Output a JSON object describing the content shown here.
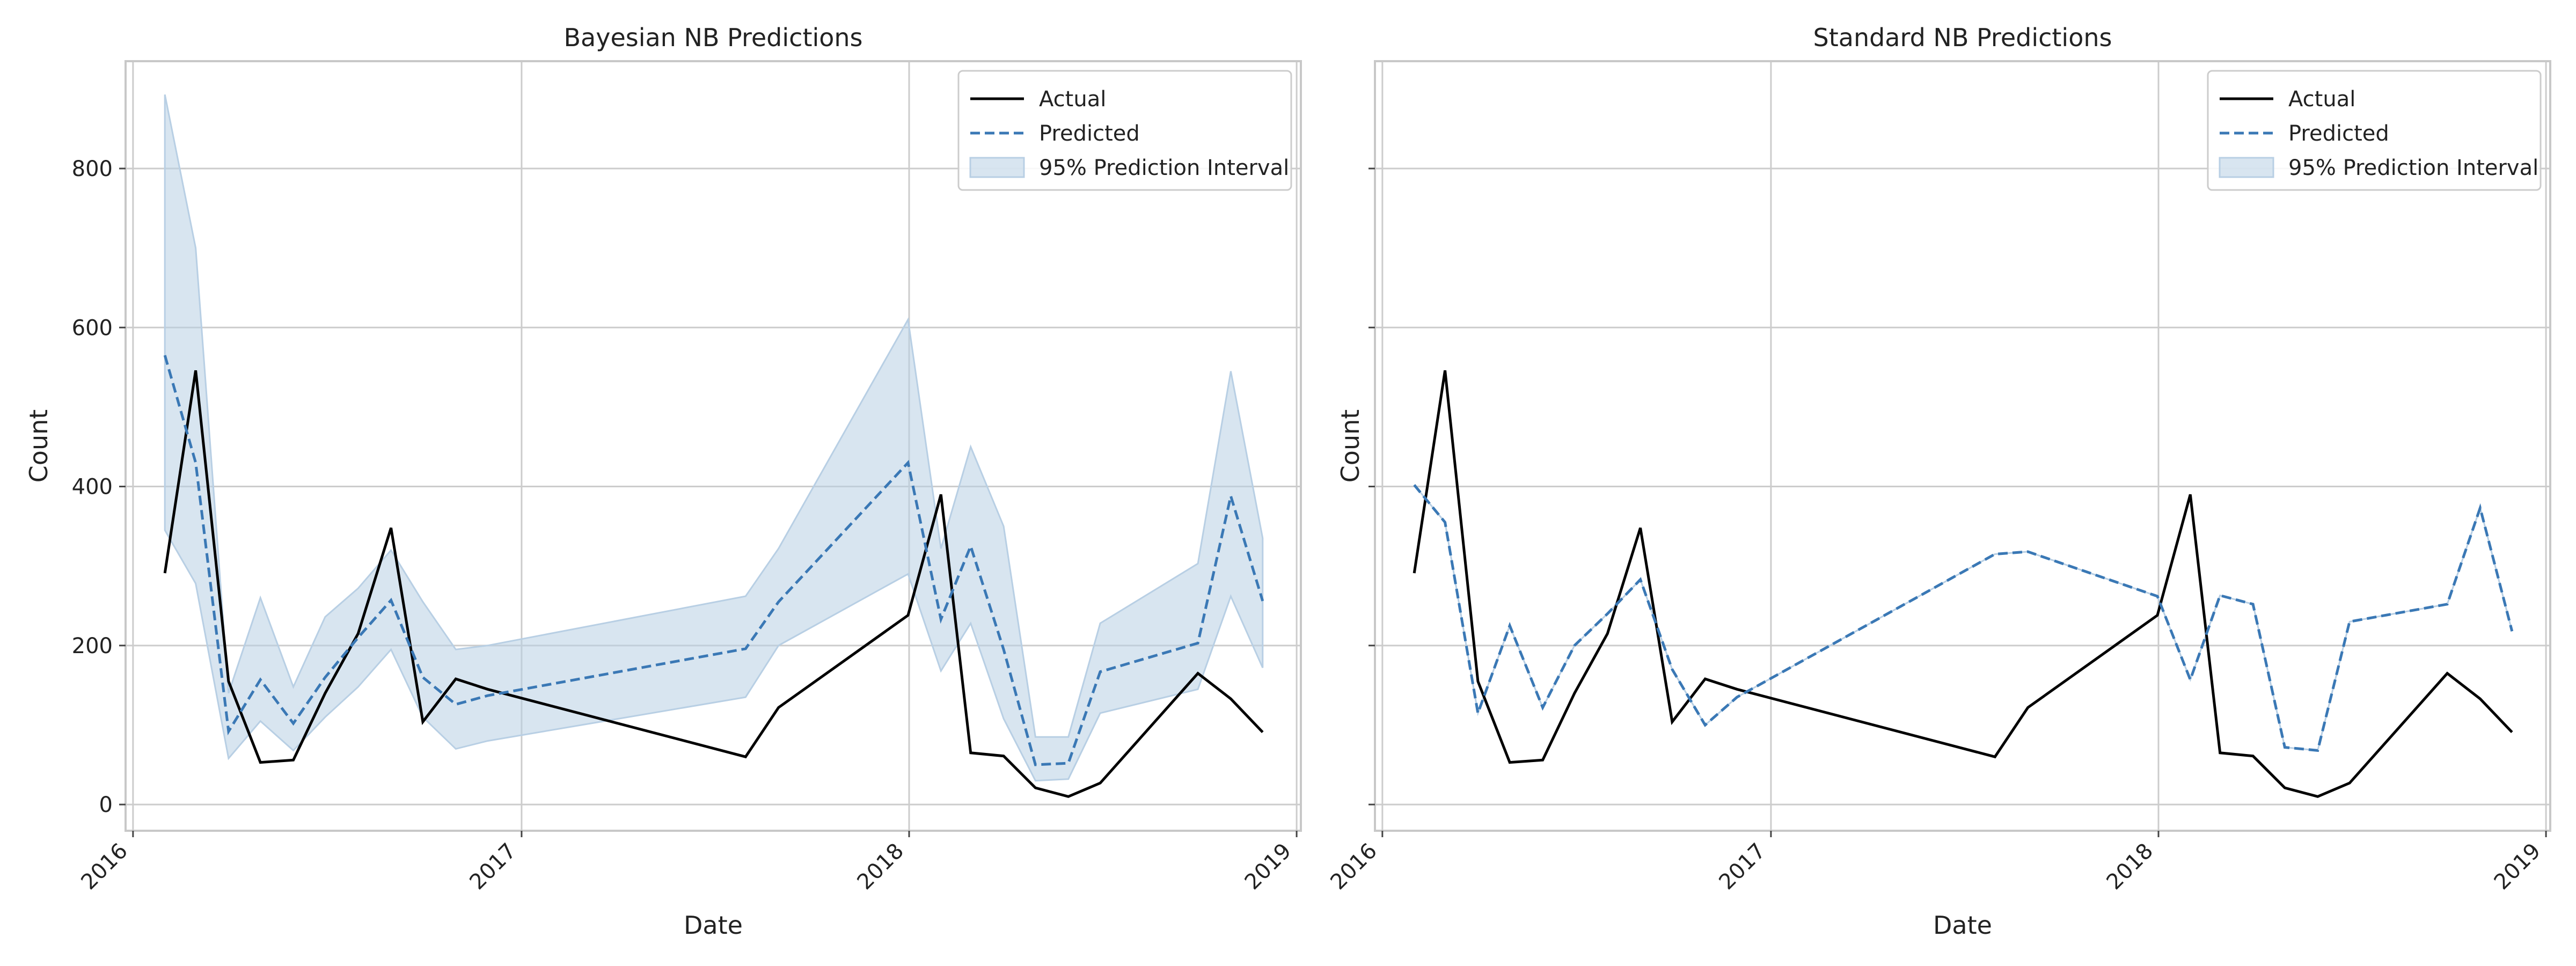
{
  "chart_data": [
    {
      "type": "line",
      "title": "Bayesian NB Predictions",
      "xlabel": "Date",
      "ylabel": "Count",
      "xlim": [
        "2015-12-25",
        "2019-01-05"
      ],
      "ylim": [
        -33,
        935
      ],
      "x_ticks": [
        {
          "label": "2016",
          "date": "2016-01-01"
        },
        {
          "label": "2017",
          "date": "2017-01-01"
        },
        {
          "label": "2018",
          "date": "2018-01-01"
        },
        {
          "label": "2019",
          "date": "2019-01-01"
        }
      ],
      "y_ticks": [
        0,
        200,
        400,
        600,
        800
      ],
      "grid": true,
      "legend": {
        "placement": "top-right",
        "entries": [
          "Actual",
          "Predicted",
          "95% Prediction Interval"
        ]
      },
      "x": [
        "2016-01-31",
        "2016-02-29",
        "2016-03-31",
        "2016-04-30",
        "2016-05-31",
        "2016-06-30",
        "2016-07-31",
        "2016-08-31",
        "2016-09-30",
        "2016-10-31",
        "2016-11-30",
        "2017-07-31",
        "2017-08-31",
        "2017-12-31",
        "2018-01-31",
        "2018-02-28",
        "2018-03-31",
        "2018-04-30",
        "2018-05-31",
        "2018-06-30",
        "2018-09-30",
        "2018-10-31",
        "2018-11-30"
      ],
      "series": [
        {
          "name": "Actual",
          "style": "solid",
          "color": "#000000",
          "values": [
            291,
            546,
            155,
            53,
            56,
            140,
            215,
            348,
            104,
            158,
            145,
            60,
            122,
            238,
            390,
            65,
            61,
            21,
            10,
            27,
            165,
            133,
            91
          ]
        },
        {
          "name": "Predicted",
          "style": "dashed",
          "color": "#3a78b5",
          "values": [
            565,
            430,
            92,
            157,
            102,
            160,
            210,
            257,
            160,
            126,
            137,
            196,
            255,
            430,
            233,
            325,
            195,
            50,
            52,
            167,
            203,
            388,
            256
          ]
        },
        {
          "name": "95% Prediction Interval",
          "style": "band",
          "color": "#b8cfe4",
          "lower": [
            345,
            278,
            58,
            105,
            68,
            110,
            148,
            195,
            110,
            70,
            80,
            135,
            200,
            290,
            168,
            228,
            108,
            30,
            32,
            115,
            145,
            262,
            172
          ],
          "upper": [
            893,
            700,
            140,
            260,
            148,
            236,
            272,
            320,
            255,
            195,
            200,
            262,
            322,
            610,
            322,
            450,
            350,
            85,
            85,
            228,
            303,
            545,
            335
          ]
        }
      ]
    },
    {
      "type": "line",
      "title": "Standard NB Predictions",
      "xlabel": "Date",
      "ylabel": "Count",
      "xlim": [
        "2015-12-25",
        "2019-01-05"
      ],
      "ylim": [
        -33,
        935
      ],
      "x_ticks": [
        {
          "label": "2016",
          "date": "2016-01-01"
        },
        {
          "label": "2017",
          "date": "2017-01-01"
        },
        {
          "label": "2018",
          "date": "2018-01-01"
        },
        {
          "label": "2019",
          "date": "2019-01-01"
        }
      ],
      "y_ticks": [
        0,
        200,
        400,
        600,
        800
      ],
      "grid": true,
      "legend": {
        "placement": "top-right",
        "entries": [
          "Actual",
          "Predicted",
          "95% Prediction Interval"
        ]
      },
      "x": [
        "2016-01-31",
        "2016-02-29",
        "2016-03-31",
        "2016-04-30",
        "2016-05-31",
        "2016-06-30",
        "2016-07-31",
        "2016-08-31",
        "2016-09-30",
        "2016-10-31",
        "2016-11-30",
        "2017-07-31",
        "2017-08-31",
        "2017-12-31",
        "2018-01-31",
        "2018-02-28",
        "2018-03-31",
        "2018-04-30",
        "2018-05-31",
        "2018-06-30",
        "2018-09-30",
        "2018-10-31",
        "2018-11-30"
      ],
      "series": [
        {
          "name": "Actual",
          "style": "solid",
          "color": "#000000",
          "values": [
            291,
            546,
            155,
            53,
            56,
            140,
            215,
            348,
            104,
            158,
            145,
            60,
            122,
            238,
            390,
            65,
            61,
            21,
            10,
            27,
            165,
            133,
            91
          ]
        },
        {
          "name": "Predicted",
          "style": "dashed",
          "color": "#3a78b5",
          "values": [
            402,
            355,
            115,
            225,
            122,
            200,
            240,
            283,
            170,
            100,
            135,
            315,
            318,
            262,
            157,
            263,
            252,
            72,
            68,
            230,
            252,
            373,
            218
          ]
        },
        {
          "name": "95% Prediction Interval",
          "style": "band",
          "color": "#b8cfe4",
          "lower": [
            402,
            355,
            115,
            225,
            122,
            200,
            240,
            283,
            170,
            100,
            135,
            315,
            318,
            262,
            157,
            263,
            252,
            72,
            68,
            230,
            252,
            373,
            218
          ],
          "upper": [
            402,
            355,
            115,
            225,
            122,
            200,
            240,
            283,
            170,
            100,
            135,
            315,
            318,
            262,
            157,
            263,
            252,
            72,
            68,
            230,
            252,
            373,
            218
          ]
        }
      ]
    }
  ]
}
